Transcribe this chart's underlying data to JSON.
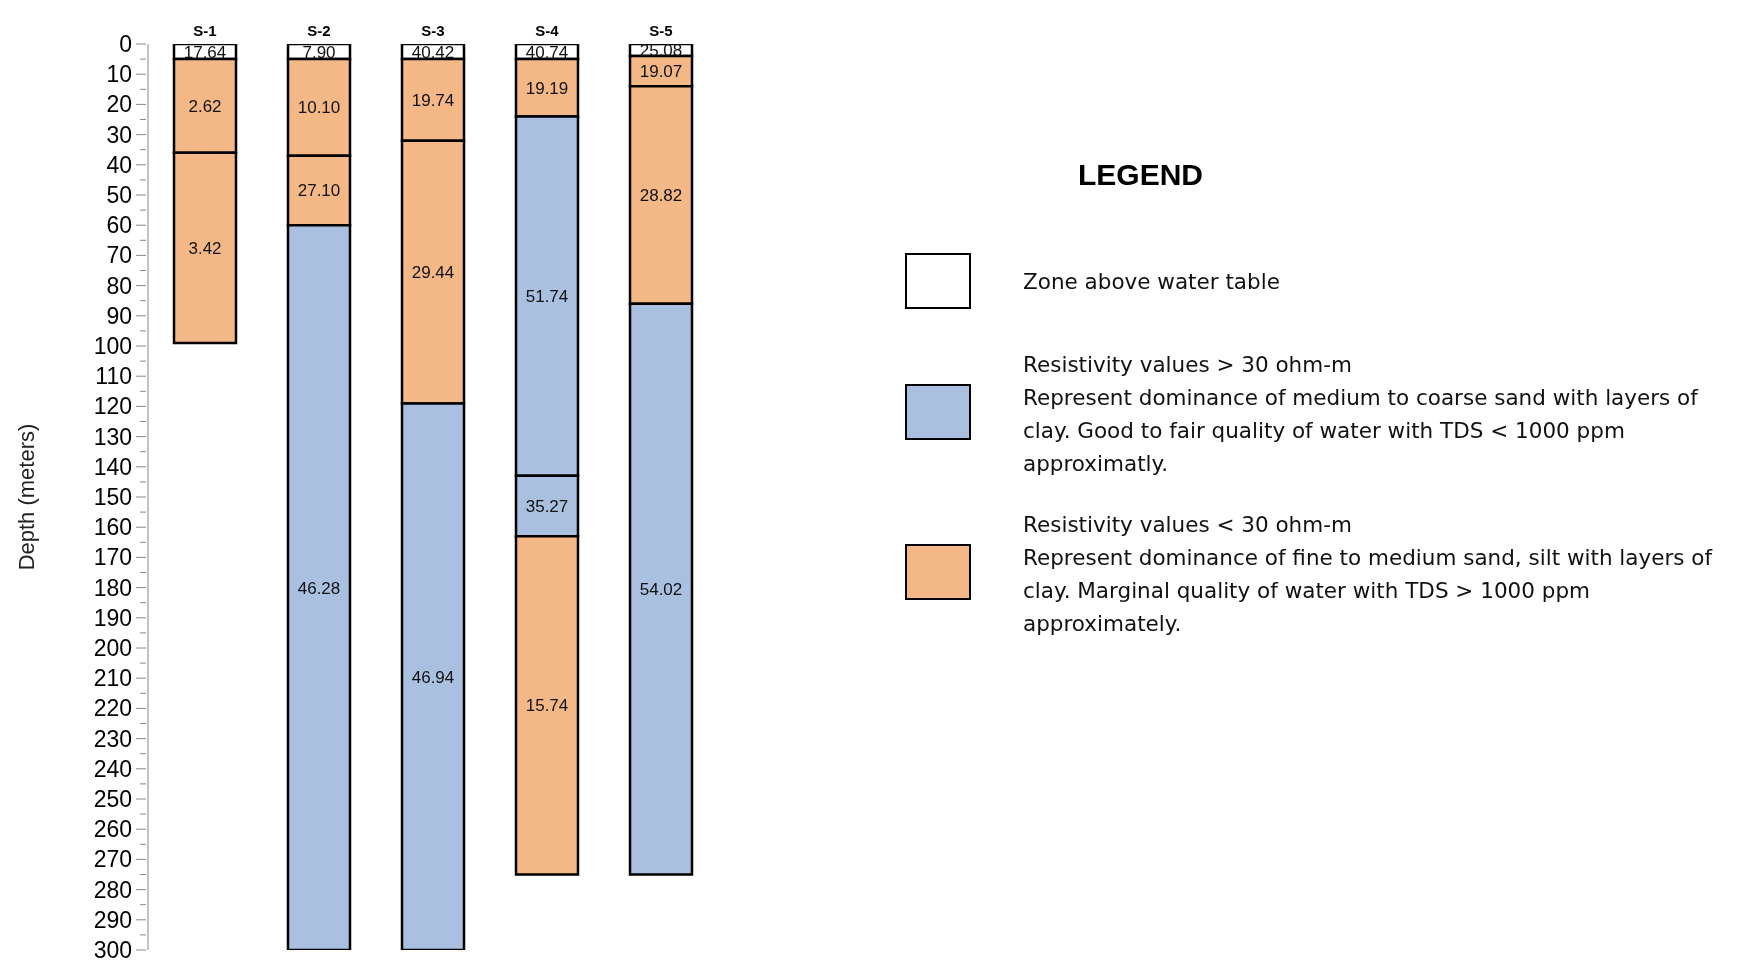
{
  "chart_data": {
    "type": "bar",
    "stacked": true,
    "categories": [
      "S-1",
      "S-2",
      "S-3",
      "S-4",
      "S-5"
    ],
    "ylabel": "Depth (meters)",
    "ylim": [
      300,
      0
    ],
    "yticks": [
      0,
      {
        "value": 5,
        "label": null
      },
      10,
      {
        "value": 15,
        "label": null
      },
      20,
      {
        "value": 25,
        "label": null
      },
      30,
      {
        "value": 35,
        "label": null
      },
      40,
      {
        "value": 45,
        "label": null
      },
      50,
      {
        "value": 55,
        "label": null
      },
      60,
      {
        "value": 65,
        "label": null
      },
      70,
      {
        "value": 75,
        "label": null
      },
      80,
      {
        "value": 85,
        "label": null
      },
      90,
      {
        "value": 95,
        "label": null
      },
      100,
      {
        "value": 105,
        "label": null
      },
      110,
      {
        "value": 115,
        "label": null
      },
      120,
      {
        "value": 125,
        "label": null
      },
      130,
      {
        "value": 135,
        "label": null
      },
      140,
      {
        "value": 145,
        "label": null
      },
      150,
      {
        "value": 155,
        "label": null
      },
      160,
      {
        "value": 165,
        "label": null
      },
      170,
      {
        "value": 175,
        "label": null
      },
      180,
      {
        "value": 185,
        "label": null
      },
      190,
      {
        "value": 195,
        "label": null
      },
      200,
      {
        "value": 205,
        "label": null
      },
      210,
      {
        "value": 215,
        "label": null
      },
      220,
      {
        "value": 225,
        "label": null
      },
      230,
      {
        "value": 235,
        "label": null
      },
      240,
      {
        "value": 245,
        "label": null
      },
      250,
      {
        "value": 255,
        "label": null
      },
      260,
      {
        "value": 265,
        "label": null
      },
      270,
      {
        "value": 275,
        "label": null
      },
      280,
      {
        "value": 285,
        "label": null
      },
      290,
      {
        "value": 295,
        "label": null
      },
      300
    ],
    "series": [
      {
        "values": [
          5,
          5,
          5,
          5,
          4
        ],
        "colors": [
          "#ffffff",
          "#ffffff",
          "#ffffff",
          "#ffffff",
          "#ffffff"
        ]
      },
      {
        "values": [
          31,
          32,
          27,
          19,
          10
        ],
        "colors": [
          "#f4b887",
          "#f4b887",
          "#f4b887",
          "#f4b887",
          "#f4b887"
        ]
      },
      {
        "values": [
          63,
          23,
          87,
          119,
          72
        ],
        "colors": [
          "#f4b887",
          "#f4b887",
          "#f4b887",
          "#a9c0e0",
          "#f4b887"
        ]
      },
      {
        "values": [
          null,
          240,
          181,
          20,
          189
        ],
        "colors": [
          "#a9c0e0",
          "#a9c0e0",
          "#a9c0e0",
          "#a9c0e0",
          "#a9c0e0"
        ]
      },
      {
        "values": [
          null,
          null,
          null,
          112,
          null
        ],
        "colors": [
          "#f4b887",
          "#f4b887",
          "#f4b887",
          "#f4b887",
          "#f4b887"
        ]
      }
    ],
    "legend_title": "LEGEND",
    "annotations": [
      "Zone above water table",
      "Resistivity values  > 30 ohm-m\nRepresent  dominance of medium to coarse sand with layers of clay. Good to fair quality of water with TDS < 1000 ppm approximatly.",
      "Resistivity values  < 30 ohm-m\nRepresent  dominance of fine to medium sand, silt with layers of clay. Marginal quality of water with TDS > 1000 ppm approximately.",
      "17.64",
      "2.62",
      "3.42",
      "7.90",
      "10.10",
      "27.10",
      "46.28",
      "40.42",
      "19.74",
      "29.44",
      "46.94",
      "40.74",
      "19.19",
      "51.74",
      "35.27",
      "15.74",
      "25.08",
      "19.07",
      "28.82",
      "54.02"
    ]
  }
}
